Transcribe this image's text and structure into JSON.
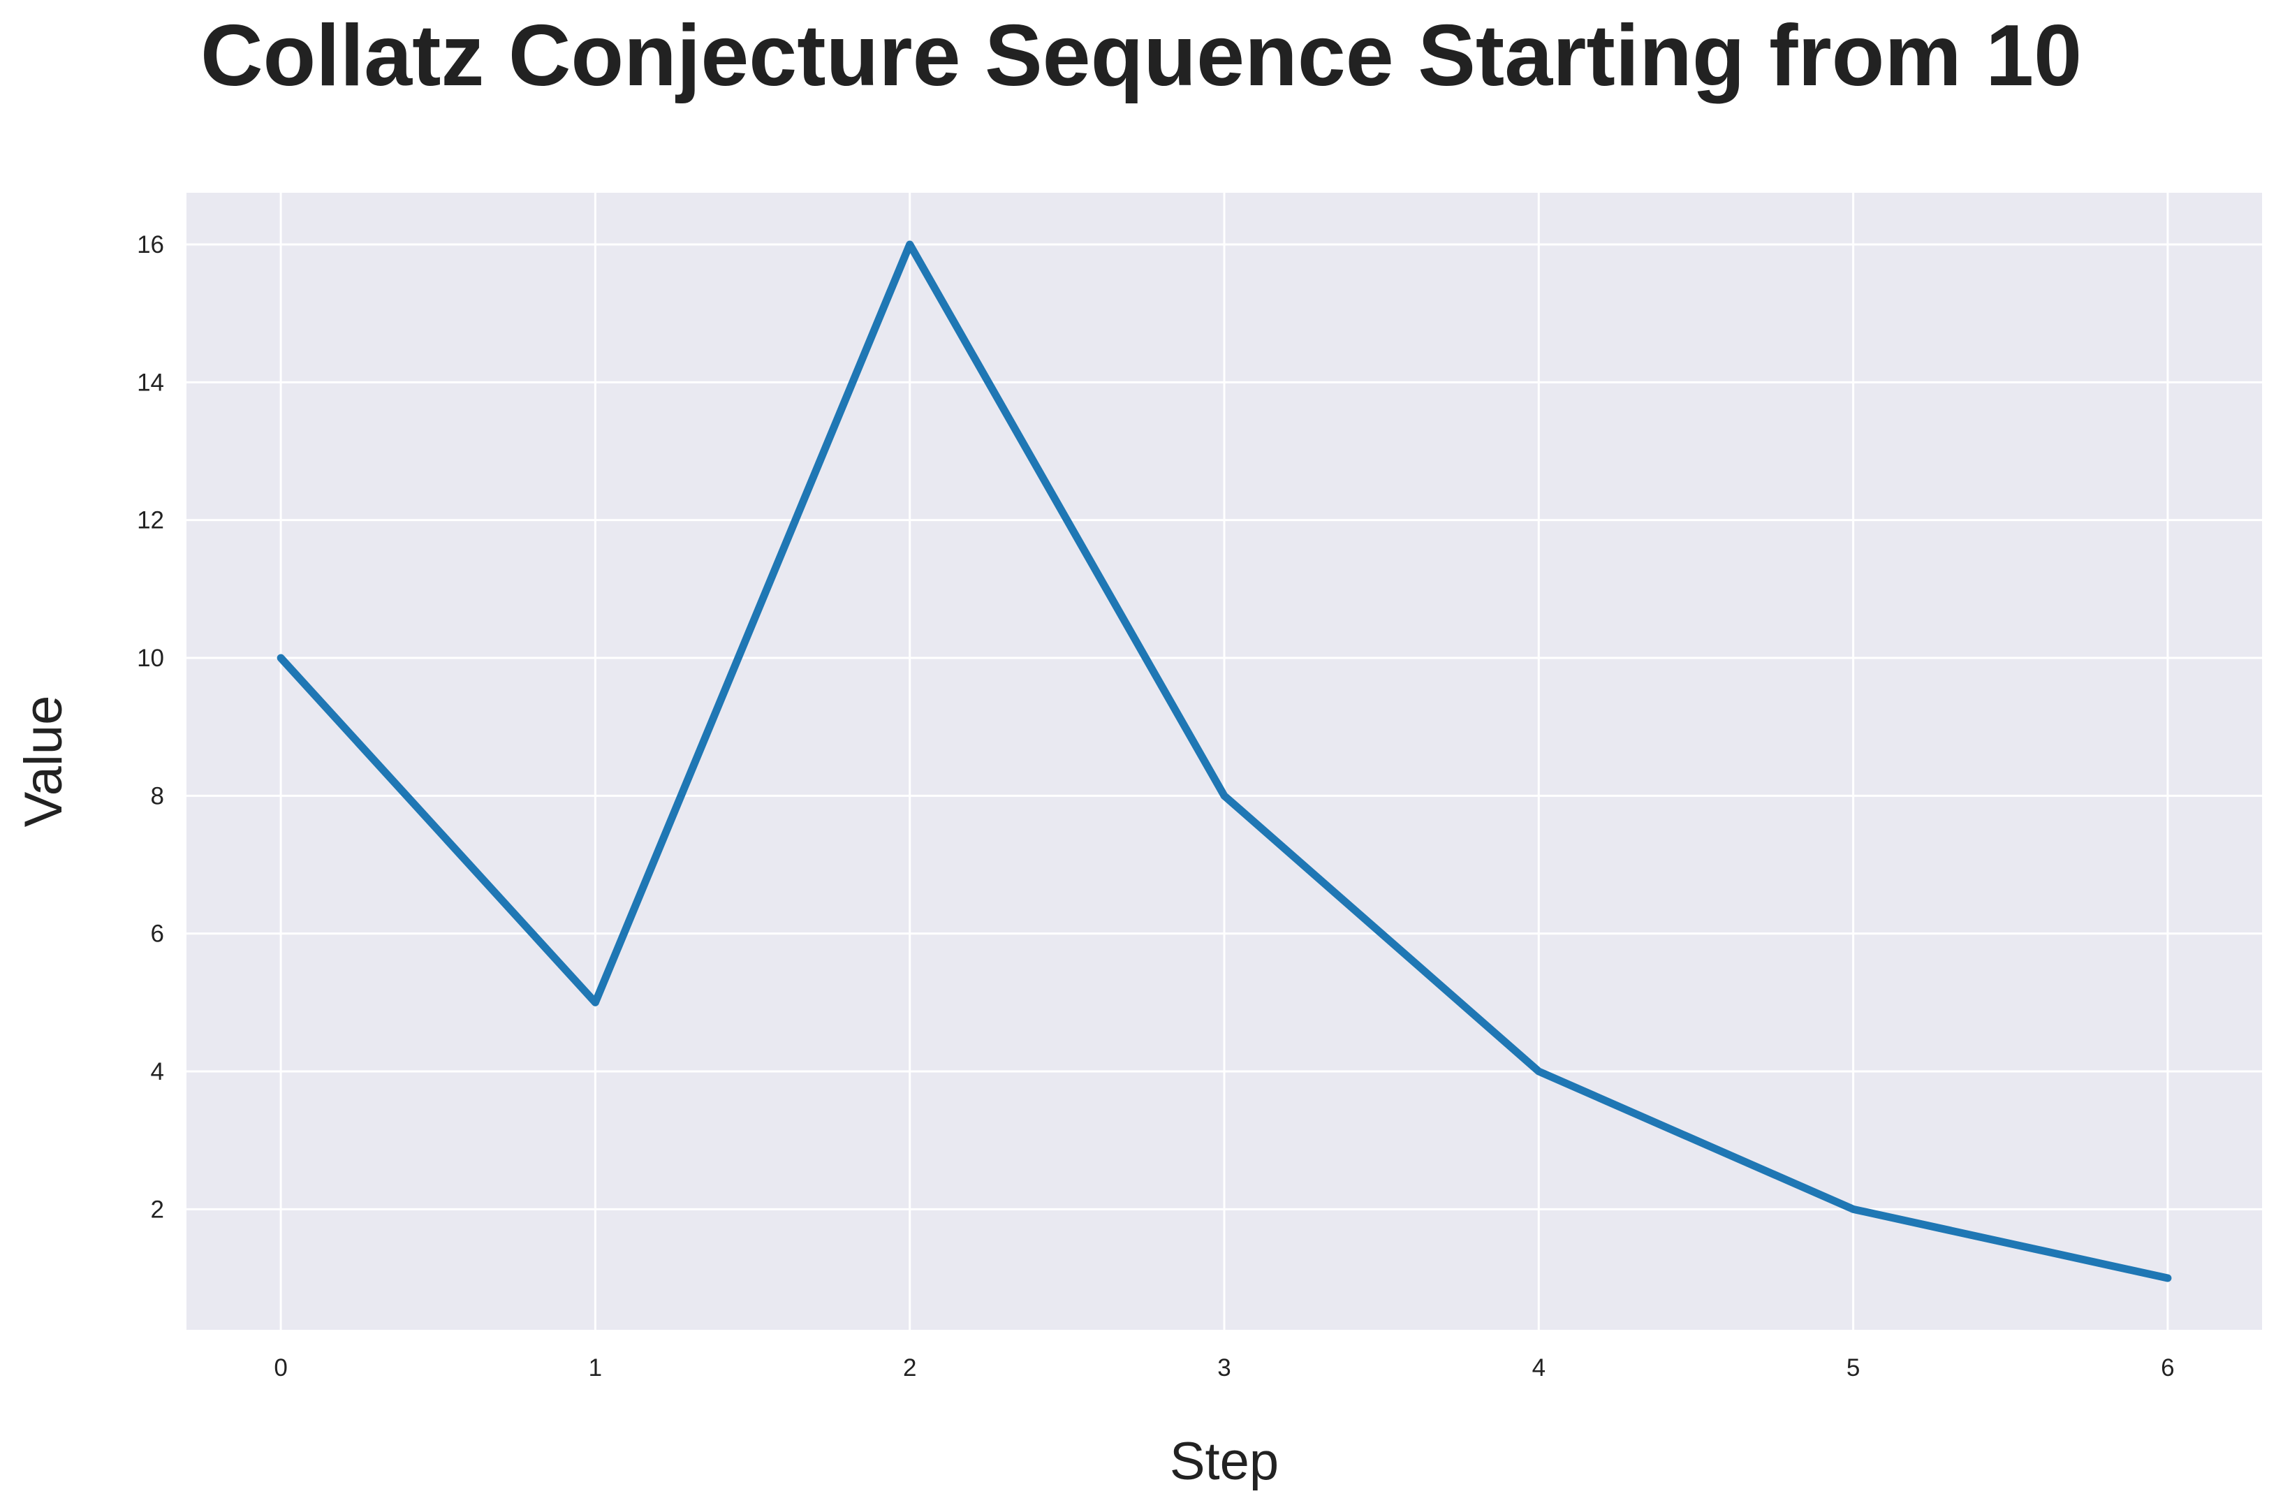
{
  "chart_data": {
    "type": "line",
    "title": "Collatz Conjecture Sequence Starting from 10",
    "xlabel": "Step",
    "ylabel": "Value",
    "x": [
      0,
      1,
      2,
      3,
      4,
      5,
      6
    ],
    "series": [
      {
        "values": [
          10,
          5,
          16,
          8,
          4,
          2,
          1
        ],
        "color": "#1f77b4"
      }
    ],
    "xlim": [
      -0.3,
      6.3
    ],
    "ylim": [
      0.25,
      16.75
    ],
    "xticks": [
      0,
      1,
      2,
      3,
      4,
      5,
      6
    ],
    "yticks": [
      2,
      4,
      6,
      8,
      10,
      12,
      14,
      16
    ],
    "grid": true,
    "legend": "none",
    "colors": {
      "plot_background": "#e9e9f1",
      "grid": "#ffffff",
      "line": "#1f77b4",
      "text": "#222222"
    }
  }
}
